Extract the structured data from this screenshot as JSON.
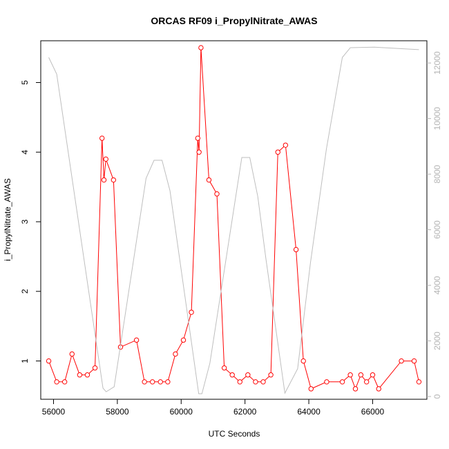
{
  "chart_data": {
    "type": "line",
    "title": "ORCAS RF09 i_PropylNitrate_AWAS",
    "xlabel": "UTC Seconds",
    "ylabel": "i_PropylNitrate_AWAS",
    "xlim": [
      55600,
      67700
    ],
    "ylim": [
      0.45,
      5.6
    ],
    "y2lim": [
      -100,
      12800
    ],
    "xticks": [
      56000,
      58000,
      60000,
      62000,
      64000,
      66000
    ],
    "yticks": [
      1,
      2,
      3,
      4,
      5
    ],
    "y2ticks": [
      0,
      2000,
      4000,
      6000,
      8000,
      10000,
      12000
    ],
    "colors": {
      "primary": "#ff0000",
      "secondary": "#bebebe",
      "axis": "#000000",
      "secondary_ticks": "#b4b4b4"
    },
    "series": [
      {
        "axis": "left",
        "style": "line-with-open-circles",
        "x": [
          55850,
          56100,
          56350,
          56580,
          56820,
          57060,
          57300,
          57520,
          57580,
          57640,
          57880,
          58100,
          58600,
          58850,
          59100,
          59350,
          59580,
          59820,
          60070,
          60320,
          60520,
          60560,
          60620,
          60870,
          61120,
          61350,
          61600,
          61840,
          62090,
          62330,
          62570,
          62810,
          63030,
          63270,
          63600,
          63830,
          64070,
          64560,
          65050,
          65300,
          65460,
          65630,
          65810,
          66000,
          66190,
          66900,
          67300,
          67450
        ],
        "y": [
          1.0,
          0.7,
          0.7,
          1.1,
          0.8,
          0.8,
          0.9,
          4.2,
          3.6,
          3.9,
          3.6,
          1.2,
          1.3,
          0.7,
          0.7,
          0.7,
          0.7,
          1.1,
          1.3,
          1.7,
          4.2,
          4.0,
          5.5,
          3.6,
          3.4,
          0.9,
          0.8,
          0.7,
          0.8,
          0.7,
          0.7,
          0.8,
          4.0,
          4.1,
          2.6,
          1.0,
          0.6,
          0.7,
          0.7,
          0.8,
          0.6,
          0.8,
          0.7,
          0.8,
          0.6,
          1.0,
          1.0,
          0.7
        ]
      },
      {
        "axis": "right",
        "style": "line",
        "x": [
          55850,
          56100,
          57550,
          57650,
          57900,
          58900,
          59150,
          59400,
          59650,
          60550,
          60650,
          60900,
          61900,
          62150,
          62400,
          62650,
          63250,
          63650,
          64050,
          64550,
          65050,
          65300,
          66050,
          67450
        ],
        "y": [
          12200,
          11600,
          300,
          170,
          350,
          7850,
          8500,
          8500,
          7400,
          100,
          100,
          1200,
          8600,
          8600,
          7200,
          5000,
          120,
          1000,
          4800,
          8900,
          12200,
          12550,
          12570,
          12480
        ]
      }
    ]
  }
}
